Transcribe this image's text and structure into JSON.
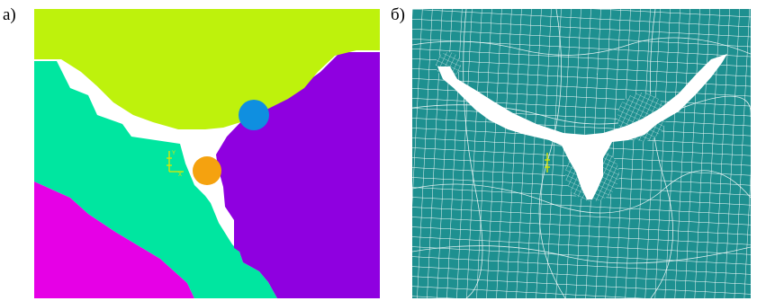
{
  "panel_a": {
    "label": "а)",
    "colors": {
      "background": "#ffffff",
      "top_region": "#bef20c",
      "left_region": "#00e6a0",
      "right_region": "#8f00e0",
      "bottom_left_region": "#e600e6",
      "circle_top": "#0f8fe0",
      "circle_bottom": "#f5a20f",
      "axis_marker": "#e0e600"
    },
    "axis_marker": {
      "label_y": "Y",
      "label_x": "X"
    }
  },
  "panel_b": {
    "label": "б)",
    "colors": {
      "mesh_fill": "#1e9090",
      "mesh_lines": "#ffffff",
      "axis_marker": "#e0e600"
    }
  }
}
